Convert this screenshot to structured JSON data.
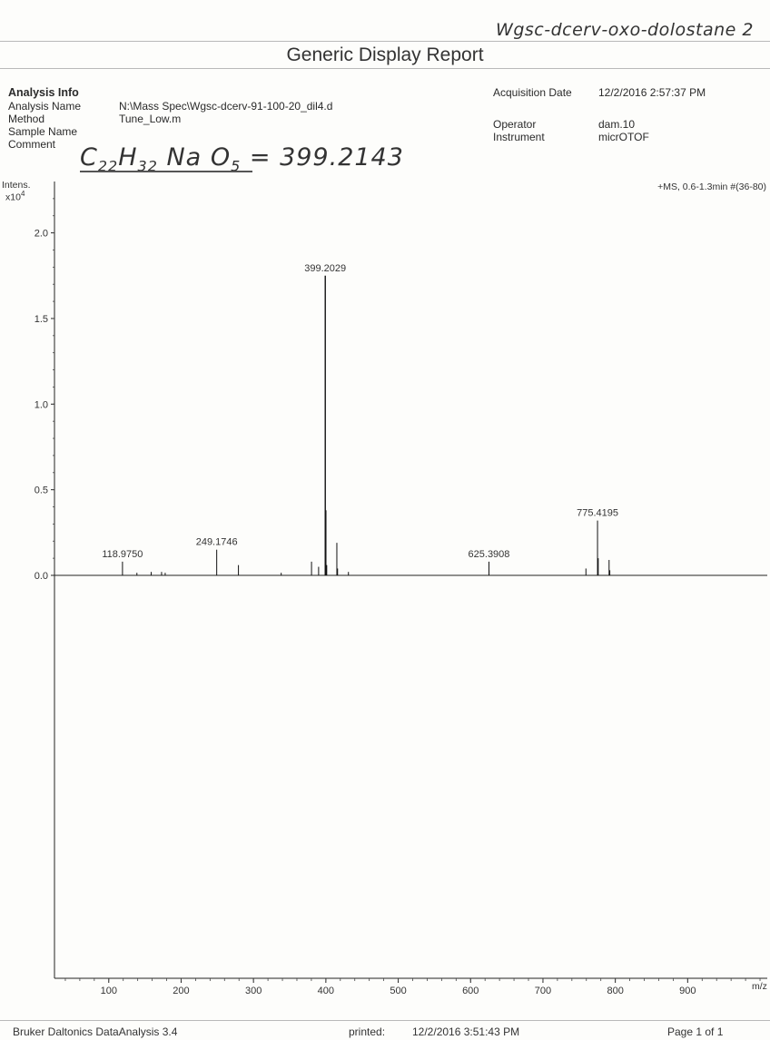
{
  "annotation": {
    "handwritten_note": "Wgsc-dcerv-oxo-dolostane 2"
  },
  "report": {
    "title": "Generic Display Report"
  },
  "analysis_info": {
    "heading": "Analysis Info",
    "analysis_name_label": "Analysis Name",
    "analysis_name_value": "N:\\Mass Spec\\Wgsc-dcerv-91-100-20_dil4.d",
    "method_label": "Method",
    "method_value": "Tune_Low.m",
    "sample_name_label": "Sample Name",
    "sample_name_value": "",
    "comment_label": "Comment",
    "acquisition_date_label": "Acquisition Date",
    "acquisition_date_value": "12/2/2016 2:57:37 PM",
    "operator_label": "Operator",
    "operator_value": "dam.10",
    "instrument_label": "Instrument",
    "instrument_value": "micrOTOF"
  },
  "handwritten_comment": {
    "c": "C",
    "c_sub": "22",
    "h": "H",
    "h_sub": "32",
    "na": "Na",
    "o": "O",
    "o_sub": "5",
    "equals": "= 399.2143"
  },
  "chart_data": {
    "type": "bar",
    "ylabel": "Intens.",
    "ylabel_exponent": "x10",
    "ylabel_power": "4",
    "xlabel": "m/z",
    "spectrum_header": "+MS, 0.6-1.3min #(36-80)",
    "xlim": [
      25,
      1010
    ],
    "ylim": [
      0,
      2.3
    ],
    "y_ticks": [
      0.0,
      0.5,
      1.0,
      1.5,
      2.0
    ],
    "y_tick_labels": [
      "0.0",
      "0.5",
      "1.0",
      "1.5",
      "2.0"
    ],
    "x_ticks": [
      100,
      200,
      300,
      400,
      500,
      600,
      700,
      800,
      900
    ],
    "x_tick_labels": [
      "100",
      "200",
      "300",
      "400",
      "500",
      "600",
      "700",
      "800",
      "900"
    ],
    "grid": false,
    "peaks": [
      {
        "mz": 118.975,
        "intensity": 0.08
      },
      {
        "mz": 138.9,
        "intensity": 0.015
      },
      {
        "mz": 158.6,
        "intensity": 0.02
      },
      {
        "mz": 173.0,
        "intensity": 0.02
      },
      {
        "mz": 178.0,
        "intensity": 0.015
      },
      {
        "mz": 249.1746,
        "intensity": 0.15
      },
      {
        "mz": 279.2,
        "intensity": 0.06
      },
      {
        "mz": 338.3,
        "intensity": 0.015
      },
      {
        "mz": 380.2,
        "intensity": 0.08
      },
      {
        "mz": 390.0,
        "intensity": 0.05
      },
      {
        "mz": 399.2029,
        "intensity": 1.75
      },
      {
        "mz": 400.2,
        "intensity": 0.38
      },
      {
        "mz": 401.2,
        "intensity": 0.06
      },
      {
        "mz": 415.2,
        "intensity": 0.19
      },
      {
        "mz": 416.2,
        "intensity": 0.04
      },
      {
        "mz": 431.2,
        "intensity": 0.02
      },
      {
        "mz": 625.3908,
        "intensity": 0.08
      },
      {
        "mz": 759.4,
        "intensity": 0.04
      },
      {
        "mz": 775.4195,
        "intensity": 0.32
      },
      {
        "mz": 776.4,
        "intensity": 0.1
      },
      {
        "mz": 791.4,
        "intensity": 0.09
      },
      {
        "mz": 792.4,
        "intensity": 0.03
      }
    ],
    "peak_labels": [
      {
        "mz": 118.975,
        "intensity": 0.08,
        "text": "118.9750"
      },
      {
        "mz": 249.1746,
        "intensity": 0.15,
        "text": "249.1746"
      },
      {
        "mz": 399.2029,
        "intensity": 1.75,
        "text": "399.2029"
      },
      {
        "mz": 625.3908,
        "intensity": 0.08,
        "text": "625.3908"
      },
      {
        "mz": 775.4195,
        "intensity": 0.32,
        "text": "775.4195"
      }
    ]
  },
  "footer": {
    "software": "Bruker Daltonics DataAnalysis 3.4",
    "printed_label": "printed:",
    "printed_value": "12/2/2016 3:51:43 PM",
    "page": "Page 1 of 1"
  }
}
